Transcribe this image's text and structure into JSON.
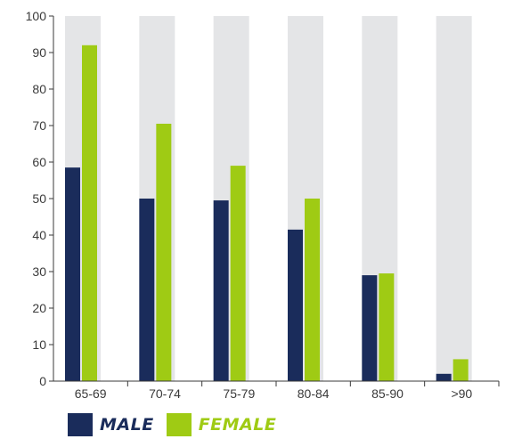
{
  "chart_data": {
    "type": "bar",
    "categories": [
      "65-69",
      "70-74",
      "75-79",
      "80-84",
      "85-90",
      ">90"
    ],
    "series": [
      {
        "name": "MALE",
        "values": [
          58.5,
          50,
          49.5,
          41.5,
          29,
          2
        ],
        "color": "#1a2c5b"
      },
      {
        "name": "FEMALE",
        "values": [
          92,
          70.5,
          59,
          50,
          29.5,
          6
        ],
        "color": "#9fcb14"
      }
    ],
    "background_bar_value": 100,
    "background_bar_color": "#e4e5e7",
    "ylim": [
      0,
      100
    ],
    "yticks": [
      0,
      10,
      20,
      30,
      40,
      50,
      60,
      70,
      80,
      90,
      100
    ],
    "title": "",
    "xlabel": "",
    "ylabel": "",
    "grid": false,
    "legend_position": "bottom-left"
  }
}
